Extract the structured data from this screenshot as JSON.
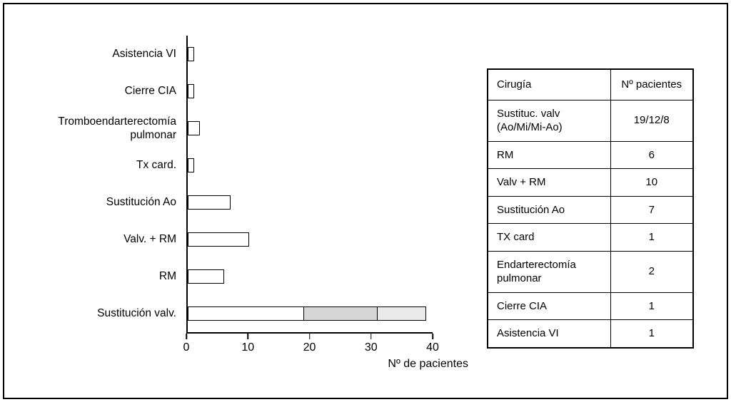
{
  "chart_data": {
    "type": "bar",
    "orientation": "horizontal",
    "title": "",
    "xlabel": "Nº de pacientes",
    "xlim": [
      0,
      40
    ],
    "xticks": [
      0,
      10,
      20,
      30,
      40
    ],
    "grid": false,
    "legend": "none",
    "categories": [
      "Asistencia VI",
      "Cierre CIA",
      "Tromboendarterectomía pulmonar",
      "Tx card.",
      "Sustitución Ao",
      "Valv. + RM",
      "RM",
      "Sustitución valv."
    ],
    "bars": [
      {
        "label": "Asistencia VI",
        "segments": [
          {
            "value": 1,
            "color": "#ffffff"
          }
        ]
      },
      {
        "label": "Cierre CIA",
        "segments": [
          {
            "value": 1,
            "color": "#ffffff"
          }
        ]
      },
      {
        "label": "Tromboendarterectomía pulmonar",
        "segments": [
          {
            "value": 2,
            "color": "#ffffff"
          }
        ]
      },
      {
        "label": "Tx card.",
        "segments": [
          {
            "value": 1,
            "color": "#ffffff"
          }
        ]
      },
      {
        "label": "Sustitución Ao",
        "segments": [
          {
            "value": 7,
            "color": "#ffffff"
          }
        ]
      },
      {
        "label": "Valv. + RM",
        "segments": [
          {
            "value": 10,
            "color": "#ffffff"
          }
        ]
      },
      {
        "label": "RM",
        "segments": [
          {
            "value": 6,
            "color": "#ffffff"
          }
        ]
      },
      {
        "label": "Sustitución valv.",
        "segments": [
          {
            "value": 19,
            "color": "#ffffff"
          },
          {
            "value": 12,
            "color": "#d6d6d6"
          },
          {
            "value": 8,
            "color": "#e9e9e9"
          }
        ]
      }
    ]
  },
  "table": {
    "headers": [
      "Cirugía",
      "Nº pacientes"
    ],
    "rows": [
      {
        "cirugia": "Sustituc. valv (Ao/Mi/Mi-Ao)",
        "pacientes": "19/12/8"
      },
      {
        "cirugia": "RM",
        "pacientes": "6"
      },
      {
        "cirugia": "Valv + RM",
        "pacientes": "10"
      },
      {
        "cirugia": "Sustitución Ao",
        "pacientes": "7"
      },
      {
        "cirugia": "TX card",
        "pacientes": "1"
      },
      {
        "cirugia": "Endarterectomía pulmonar",
        "pacientes": "2"
      },
      {
        "cirugia": "Cierre CIA",
        "pacientes": "1"
      },
      {
        "cirugia": "Asistencia VI",
        "pacientes": "1"
      }
    ]
  }
}
